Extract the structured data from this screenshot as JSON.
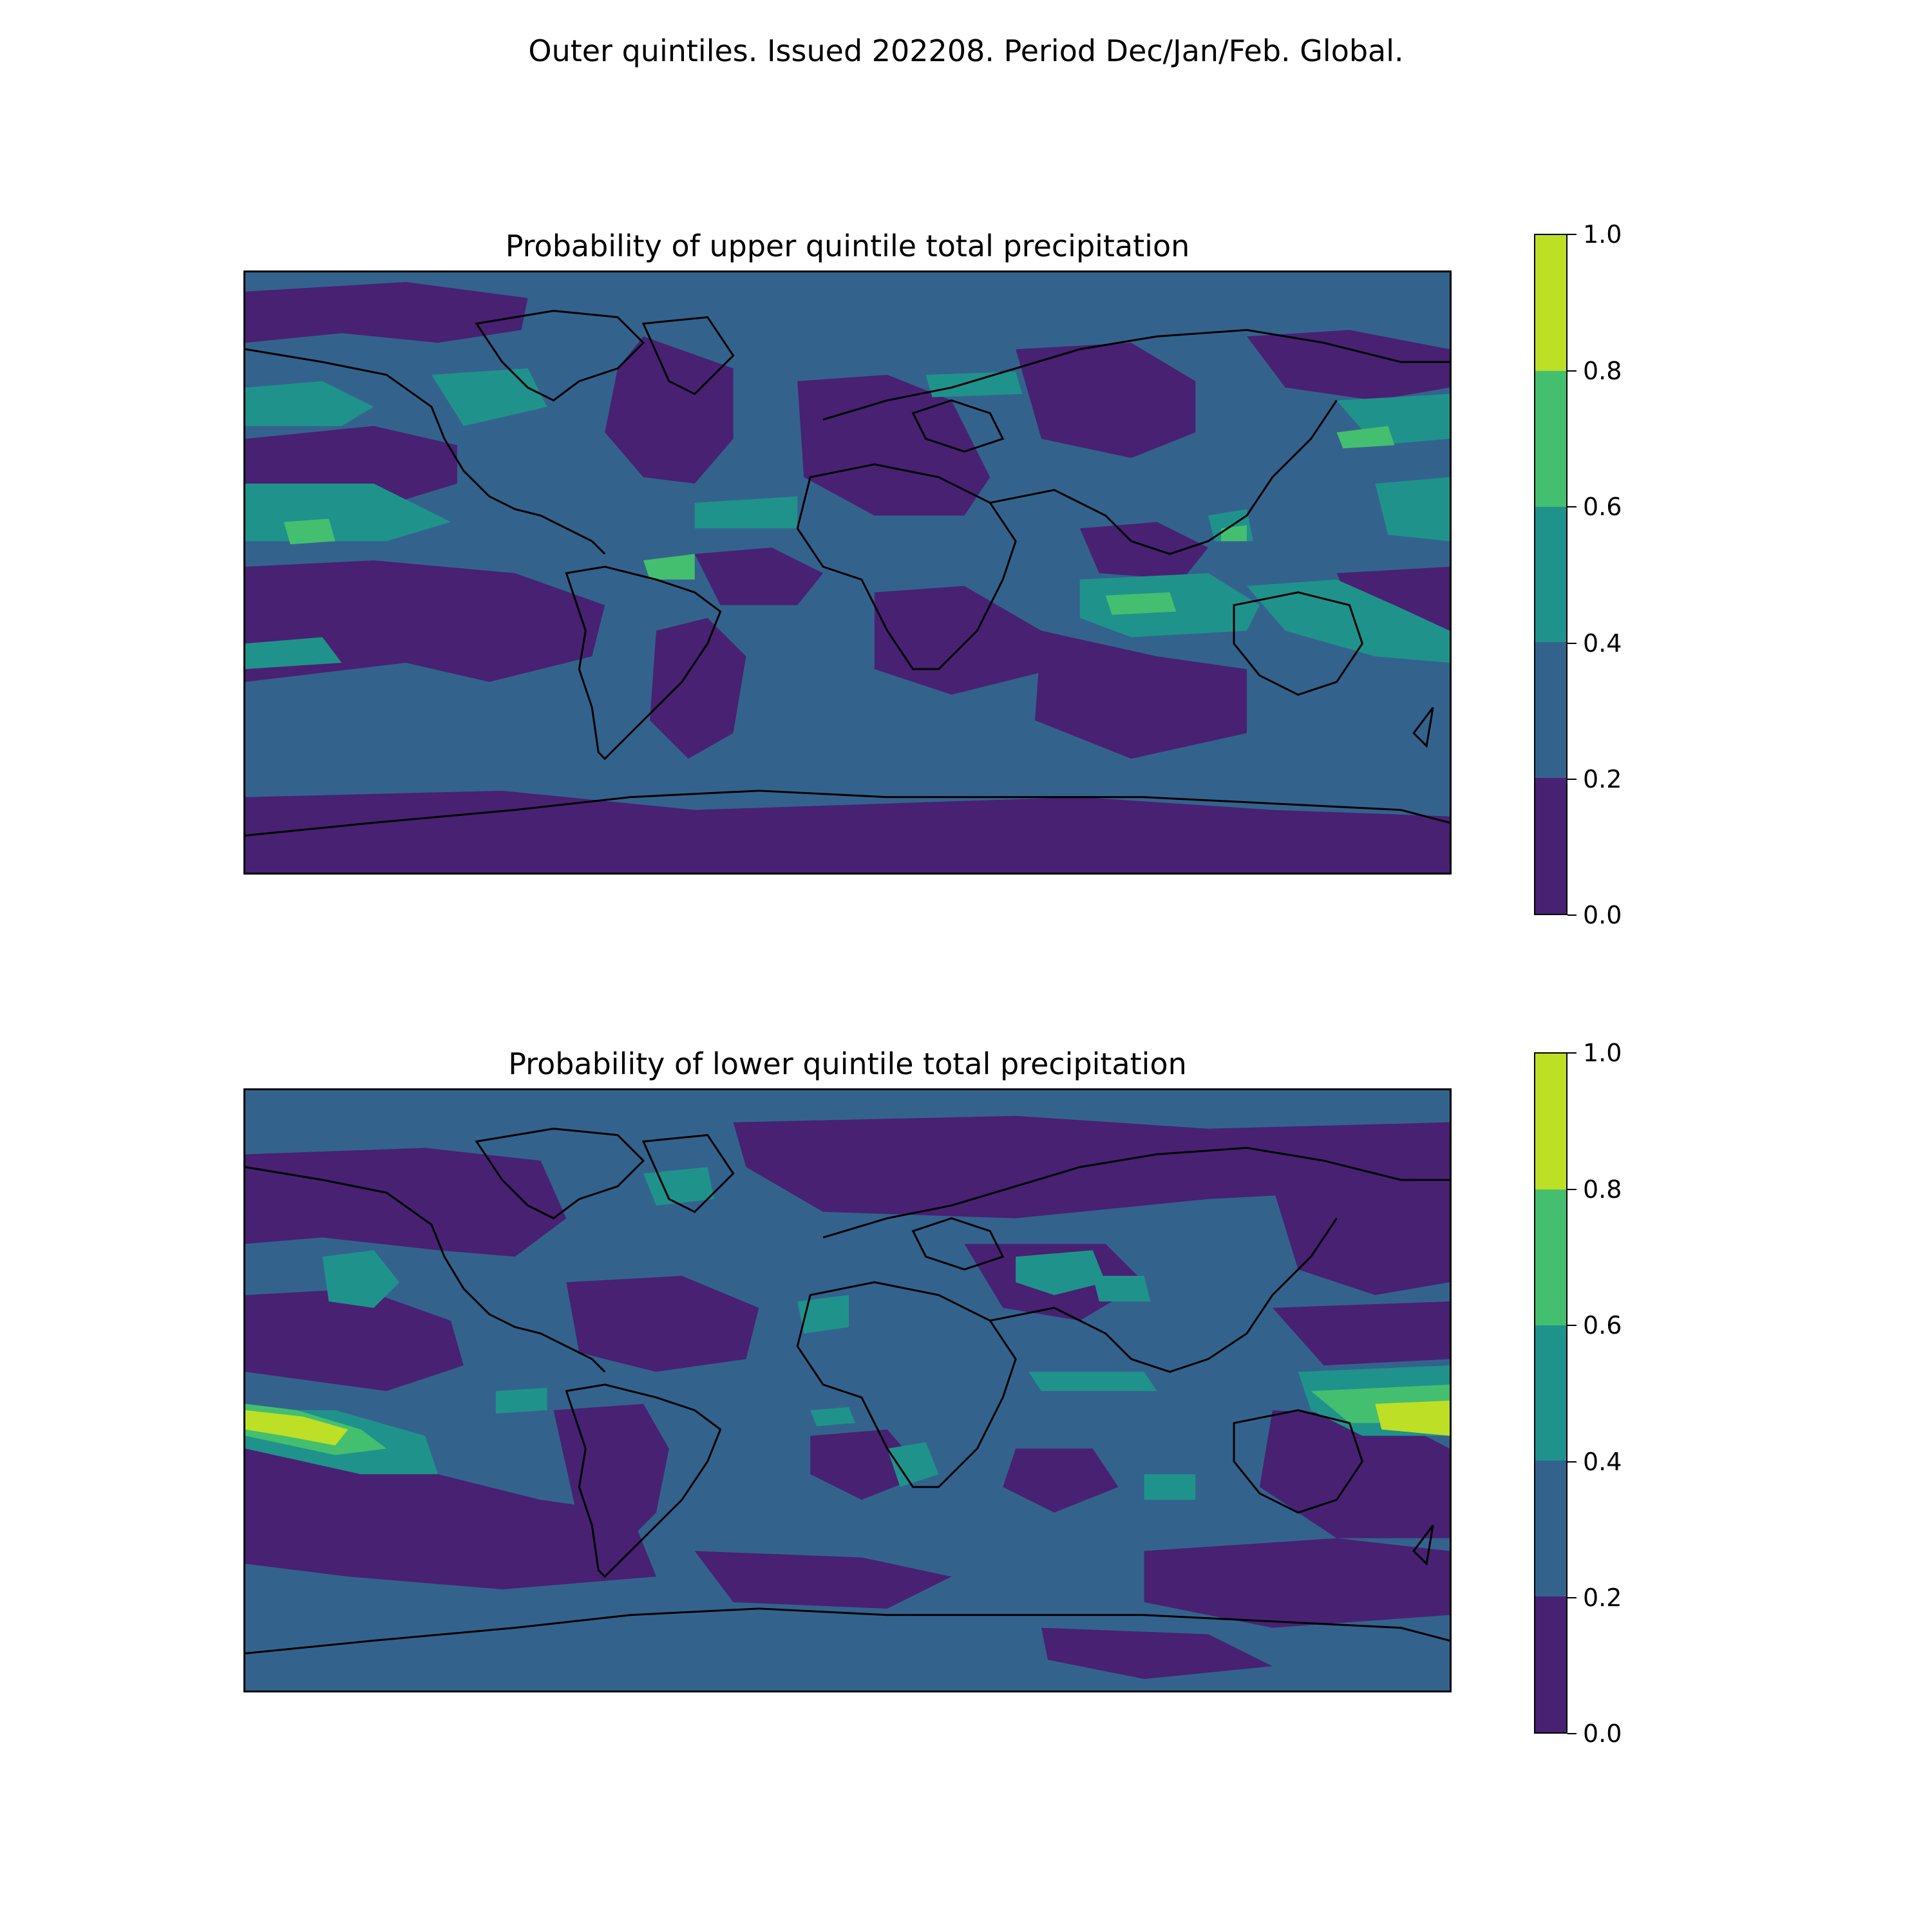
{
  "figure": {
    "suptitle": "Outer quintiles. Issued 202208. Period Dec/Jan/Feb. Global."
  },
  "colorbar": {
    "ticks": [
      "0.0",
      "0.2",
      "0.4",
      "0.6",
      "0.8",
      "1.0"
    ],
    "levels": [
      {
        "range": "0.0-0.2",
        "color": "#482173"
      },
      {
        "range": "0.2-0.4",
        "color": "#33638d"
      },
      {
        "range": "0.4-0.6",
        "color": "#20928c"
      },
      {
        "range": "0.6-0.8",
        "color": "#44bf70"
      },
      {
        "range": "0.8-1.0",
        "color": "#bddf26"
      }
    ]
  },
  "panels": [
    {
      "id": "upper",
      "title": "Probability of upper quintile total precipitation"
    },
    {
      "id": "lower",
      "title": "Probability of lower quintile total precipitation"
    }
  ]
}
